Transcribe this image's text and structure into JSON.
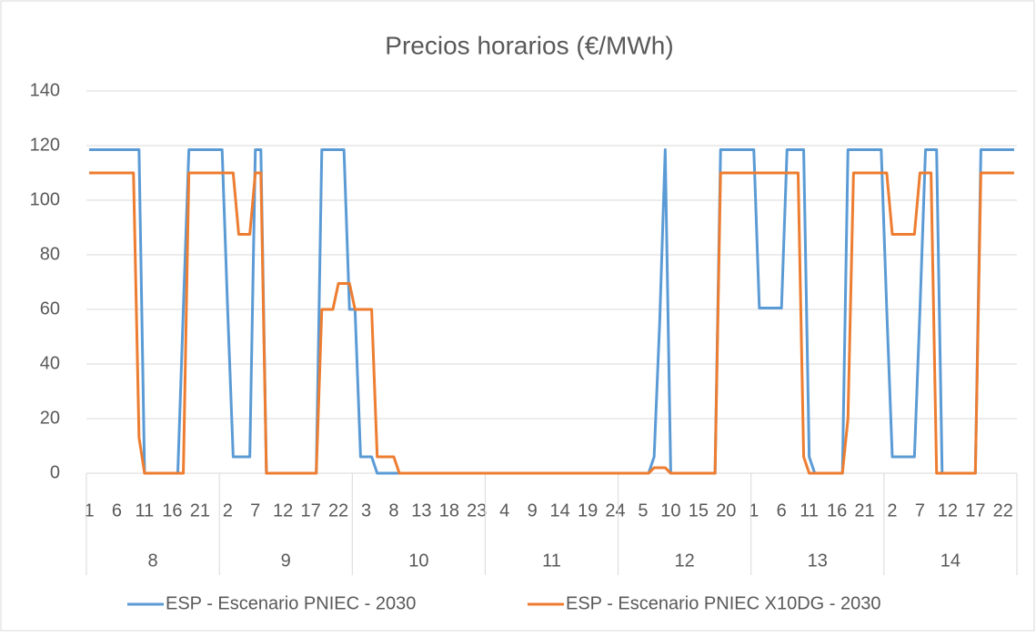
{
  "chart_data": {
    "type": "line",
    "title": "Precios horarios (€/MWh)",
    "categories": [
      "1",
      null,
      null,
      null,
      null,
      "6",
      null,
      null,
      null,
      null,
      "11",
      null,
      null,
      null,
      null,
      "16",
      null,
      null,
      null,
      null,
      "21",
      null,
      null,
      null,
      null,
      "2",
      null,
      null,
      null,
      null,
      "7",
      null,
      null,
      null,
      null,
      "12",
      null,
      null,
      null,
      null,
      "17",
      null,
      null,
      null,
      null,
      "22",
      null,
      null,
      null,
      null,
      "3",
      null,
      null,
      null,
      null,
      "8",
      null,
      null,
      null,
      null,
      "13",
      null,
      null,
      null,
      null,
      "18",
      null,
      null,
      null,
      null,
      "23",
      null,
      null,
      null,
      null,
      "4",
      null,
      null,
      null,
      null,
      "9",
      null,
      null,
      null,
      null,
      "14",
      null,
      null,
      null,
      null,
      "19",
      null,
      null,
      null,
      null,
      "24",
      null,
      null,
      null,
      null,
      "5",
      null,
      null,
      null,
      null,
      "10",
      null,
      null,
      null,
      null,
      "15",
      null,
      null,
      null,
      null,
      "20",
      null,
      null,
      null,
      null,
      "1",
      null,
      null,
      null,
      null,
      "6",
      null,
      null,
      null,
      null,
      "11",
      null,
      null,
      null,
      null,
      "16",
      null,
      null,
      null,
      null,
      "21",
      null,
      null,
      null,
      null,
      "2",
      null,
      null,
      null,
      null,
      "7",
      null,
      null,
      null,
      null,
      "12",
      null,
      null,
      null,
      null,
      "17",
      null,
      null,
      null,
      null,
      "22",
      null,
      null
    ],
    "groups": [
      "8",
      "9",
      "10",
      "11",
      "12",
      "13",
      "14"
    ],
    "series": [
      {
        "name": "ESP - Escenario PNIEC - 2030",
        "color": "#5b9bd5",
        "values": [
          118.5,
          118.5,
          118.5,
          118.5,
          118.5,
          118.5,
          118.5,
          118.5,
          118.5,
          118.5,
          0,
          0,
          0,
          0,
          0,
          0,
          0,
          60,
          118.5,
          118.5,
          118.5,
          118.5,
          118.5,
          118.5,
          118.5,
          60,
          6,
          6,
          6,
          6,
          118.5,
          118.5,
          0,
          0,
          0,
          0,
          0,
          0,
          0,
          0,
          0,
          0,
          118.5,
          118.5,
          118.5,
          118.5,
          118.5,
          60,
          60,
          6,
          6,
          6,
          0,
          0,
          0,
          0,
          0,
          0,
          0,
          0,
          0,
          0,
          0,
          0,
          0,
          0,
          0,
          0,
          0,
          0,
          0,
          0,
          0,
          0,
          0,
          0,
          0,
          0,
          0,
          0,
          0,
          0,
          0,
          0,
          0,
          0,
          0,
          0,
          0,
          0,
          0,
          0,
          0,
          0,
          0,
          0,
          0,
          0,
          0,
          0,
          0,
          0,
          6,
          55,
          118.5,
          0,
          0,
          0,
          0,
          0,
          0,
          0,
          0,
          0,
          118.5,
          118.5,
          118.5,
          118.5,
          118.5,
          118.5,
          118.5,
          60.5,
          60.5,
          60.5,
          60.5,
          60.5,
          118.5,
          118.5,
          118.5,
          118.5,
          6,
          0,
          0,
          0,
          0,
          0,
          0,
          118.5,
          118.5,
          118.5,
          118.5,
          118.5,
          118.5,
          118.5,
          60,
          6,
          6,
          6,
          6,
          6,
          60,
          118.5,
          118.5,
          118.5,
          0,
          0,
          0,
          0,
          0,
          0,
          0,
          118.5,
          118.5,
          118.5,
          118.5,
          118.5,
          118.5,
          118.5
        ]
      },
      {
        "name": "ESP - Escenario PNIEC X10DG - 2030",
        "color": "#ed7d31",
        "values": [
          110,
          110,
          110,
          110,
          110,
          110,
          110,
          110,
          110,
          13,
          0,
          0,
          0,
          0,
          0,
          0,
          0,
          0,
          110,
          110,
          110,
          110,
          110,
          110,
          110,
          110,
          110,
          87.5,
          87.5,
          87.5,
          110,
          110,
          0,
          0,
          0,
          0,
          0,
          0,
          0,
          0,
          0,
          0,
          60,
          60,
          60,
          69.5,
          69.5,
          69.5,
          60,
          60,
          60,
          60,
          6,
          6,
          6,
          6,
          0,
          0,
          0,
          0,
          0,
          0,
          0,
          0,
          0,
          0,
          0,
          0,
          0,
          0,
          0,
          0,
          0,
          0,
          0,
          0,
          0,
          0,
          0,
          0,
          0,
          0,
          0,
          0,
          0,
          0,
          0,
          0,
          0,
          0,
          0,
          0,
          0,
          0,
          0,
          0,
          0,
          0,
          0,
          0,
          0,
          0,
          2,
          2,
          2,
          0,
          0,
          0,
          0,
          0,
          0,
          0,
          0,
          0,
          110,
          110,
          110,
          110,
          110,
          110,
          110,
          110,
          110,
          110,
          110,
          110,
          110,
          110,
          110,
          6,
          0,
          0,
          0,
          0,
          0,
          0,
          0,
          20,
          110,
          110,
          110,
          110,
          110,
          110,
          110,
          87.5,
          87.5,
          87.5,
          87.5,
          87.5,
          110,
          110,
          110,
          0,
          0,
          0,
          0,
          0,
          0,
          0,
          0,
          110,
          110,
          110,
          110,
          110,
          110,
          110
        ]
      }
    ],
    "ylim": [
      0,
      140
    ],
    "yticks": [
      0,
      20,
      40,
      60,
      80,
      100,
      120,
      140
    ],
    "grid": true,
    "legend": "bottom"
  }
}
